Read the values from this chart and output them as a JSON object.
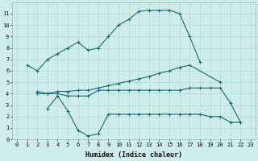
{
  "xlabel": "Humidex (Indice chaleur)",
  "bg_color": "#ceecea",
  "grid_color": "#b8ddd9",
  "line_color": "#1a6b6b",
  "xlim": [
    -0.5,
    23.5
  ],
  "ylim": [
    0,
    12
  ],
  "xticks": [
    0,
    1,
    2,
    3,
    4,
    5,
    6,
    7,
    8,
    9,
    10,
    11,
    12,
    13,
    14,
    15,
    16,
    17,
    18,
    19,
    20,
    21,
    22,
    23
  ],
  "yticks": [
    0,
    1,
    2,
    3,
    4,
    5,
    6,
    7,
    8,
    9,
    10,
    11
  ],
  "line1_x": [
    1,
    2,
    3,
    4,
    5,
    6,
    7,
    8,
    9,
    10,
    11,
    12,
    13,
    14,
    15,
    16,
    17,
    18
  ],
  "line1_y": [
    6.5,
    6.0,
    7.0,
    7.5,
    8.0,
    8.5,
    7.8,
    8.0,
    9.0,
    10.0,
    10.5,
    11.2,
    11.3,
    11.3,
    11.3,
    11.0,
    9.0,
    6.8
  ],
  "line2_x": [
    2,
    3,
    4,
    5,
    6,
    7,
    8,
    9,
    10,
    11,
    12,
    13,
    14,
    15,
    16,
    17,
    20
  ],
  "line2_y": [
    4.0,
    4.0,
    4.2,
    4.2,
    4.3,
    4.3,
    4.5,
    4.7,
    4.9,
    5.1,
    5.3,
    5.5,
    5.8,
    6.0,
    6.3,
    6.5,
    5.0
  ],
  "line3_x": [
    2,
    3,
    4,
    5,
    6,
    7,
    8,
    9,
    10,
    11,
    12,
    13,
    14,
    15,
    16,
    17,
    18,
    19,
    20,
    21,
    22
  ],
  "line3_y": [
    4.2,
    4.0,
    4.0,
    3.8,
    3.8,
    3.8,
    4.3,
    4.3,
    4.3,
    4.3,
    4.3,
    4.3,
    4.3,
    4.3,
    4.3,
    4.5,
    4.5,
    4.5,
    4.5,
    3.2,
    1.5
  ],
  "line4_x": [
    3,
    4,
    5,
    6,
    7,
    8,
    9,
    10,
    11,
    12,
    13,
    14,
    15,
    16,
    17,
    18,
    19,
    20,
    21,
    22
  ],
  "line4_y": [
    2.7,
    3.8,
    2.5,
    0.8,
    0.3,
    0.5,
    2.2,
    2.2,
    2.2,
    2.2,
    2.2,
    2.2,
    2.2,
    2.2,
    2.2,
    2.2,
    2.0,
    2.0,
    1.5,
    1.5
  ]
}
